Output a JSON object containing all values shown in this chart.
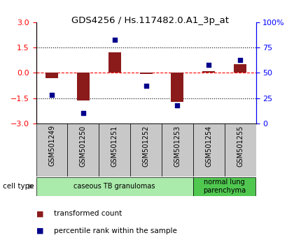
{
  "title": "GDS4256 / Hs.117482.0.A1_3p_at",
  "samples": [
    "GSM501249",
    "GSM501250",
    "GSM501251",
    "GSM501252",
    "GSM501253",
    "GSM501254",
    "GSM501255"
  ],
  "transformed_count": [
    -0.3,
    -1.62,
    1.22,
    -0.05,
    -1.72,
    0.1,
    0.5
  ],
  "percentile_rank": [
    28,
    10,
    83,
    37,
    18,
    58,
    63
  ],
  "ylim_left": [
    -3,
    3
  ],
  "ylim_right": [
    0,
    100
  ],
  "yticks_left": [
    -3,
    -1.5,
    0,
    1.5,
    3
  ],
  "yticks_right": [
    0,
    25,
    50,
    75,
    100
  ],
  "ytick_labels_right": [
    "0",
    "25",
    "50",
    "75",
    "100%"
  ],
  "dotted_lines": [
    -1.5,
    1.5
  ],
  "bar_color": "#8B1A1A",
  "dot_color": "#00008B",
  "bar_width": 0.4,
  "label_box_color": "#C8C8C8",
  "cell_groups": [
    {
      "label": "caseous TB granulomas",
      "start": 0,
      "end": 4,
      "color": "#AAEAAA"
    },
    {
      "label": "normal lung\nparenchyma",
      "start": 5,
      "end": 6,
      "color": "#50C850"
    }
  ],
  "legend_bar_label": "transformed count",
  "legend_dot_label": "percentile rank within the sample",
  "cell_type_label": "cell type",
  "background_color": "#ffffff"
}
